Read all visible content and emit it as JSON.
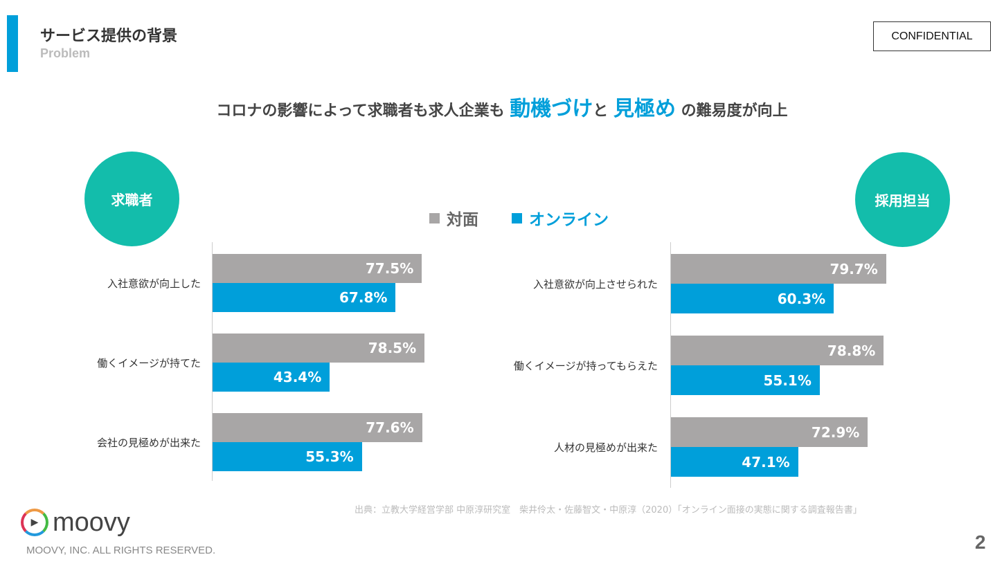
{
  "header": {
    "title": "サービス提供の背景",
    "subtitle": "Problem",
    "badge": "CONFIDENTIAL"
  },
  "headline": {
    "pre": "コロナの影響によって求職者も求人企業も",
    "hl1": "動機づけ",
    "mid": "と",
    "hl2": "見極め",
    "post": "の難易度が向上"
  },
  "colors": {
    "face_to_face": "#A8A6A6",
    "online": "#009FDA",
    "accent": "#13BDAB"
  },
  "chart_data": [
    {
      "type": "bar",
      "orientation": "horizontal",
      "title": "求職者",
      "categories": [
        "入社意欲が向上した",
        "働くイメージが持てた",
        "会社の見極めが出来た"
      ],
      "series": [
        {
          "name": "対面",
          "values": [
            77.5,
            78.5,
            77.6
          ]
        },
        {
          "name": "オンライン",
          "values": [
            67.8,
            43.4,
            55.3
          ]
        }
      ],
      "unit": "%",
      "xlim": [
        0,
        100
      ]
    },
    {
      "type": "bar",
      "orientation": "horizontal",
      "title": "採用担当",
      "categories": [
        "入社意欲が向上させられた",
        "働くイメージが持ってもらえた",
        "人材の見極めが出来た"
      ],
      "series": [
        {
          "name": "対面",
          "values": [
            79.7,
            78.8,
            72.9
          ]
        },
        {
          "name": "オンライン",
          "values": [
            60.3,
            55.1,
            47.1
          ]
        }
      ],
      "unit": "%",
      "xlim": [
        0,
        100
      ]
    }
  ],
  "legend": {
    "face_to_face": "対面",
    "online": "オンライン"
  },
  "footer": {
    "source": "出典：立教大学経営学部 中原淳研究室　柴井伶太・佐藤智文・中原淳（2020）「オンライン面接の実態に関する調査報告書」",
    "logo": "moovy",
    "copyright": "MOOVY, INC. ALL RIGHTS RESERVED.",
    "page": "2"
  }
}
